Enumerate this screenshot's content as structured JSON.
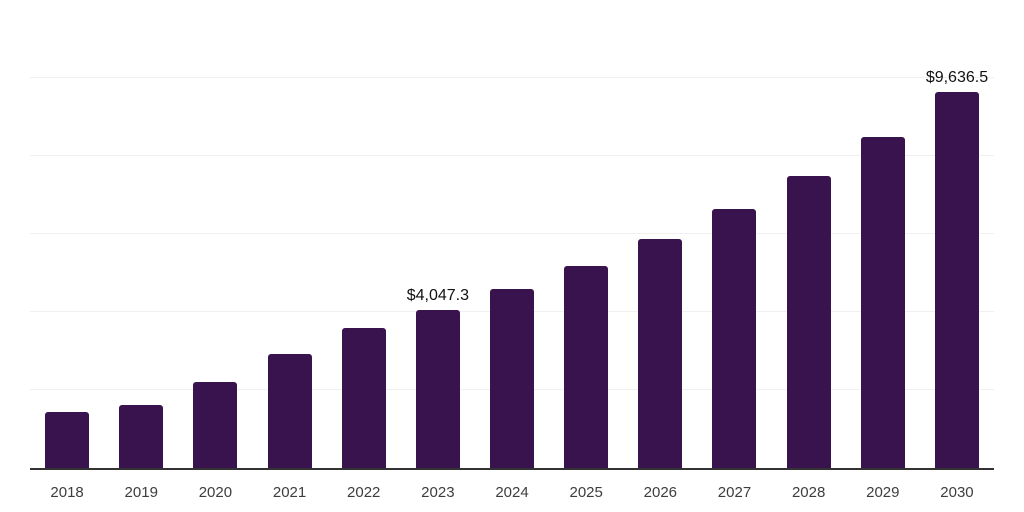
{
  "page": {
    "background_color": "#ffffff"
  },
  "chart_data": {
    "type": "bar",
    "title": "",
    "xlabel": "",
    "ylabel": "",
    "categories": [
      "2018",
      "2019",
      "2020",
      "2021",
      "2022",
      "2023",
      "2024",
      "2025",
      "2026",
      "2027",
      "2028",
      "2029",
      "2030"
    ],
    "values": [
      1425,
      1620,
      2200,
      2935,
      3585,
      4047.3,
      4590,
      5170,
      5860,
      6640,
      7495,
      8490,
      9636.5
    ],
    "data_labels": {
      "2023": "$4,047.3",
      "2030": "$9,636.5"
    },
    "ylim": [
      0,
      12000
    ],
    "gridline_step": 2000,
    "grid": "horizontal-only",
    "y_tick_labels_visible": false,
    "legend": "none",
    "bar_color": "#38134E",
    "axis_line_color": "#333333",
    "gridline_color": "#f0f0f2",
    "tick_label_color": "#3d3d3d",
    "data_label_color": "#111111"
  }
}
